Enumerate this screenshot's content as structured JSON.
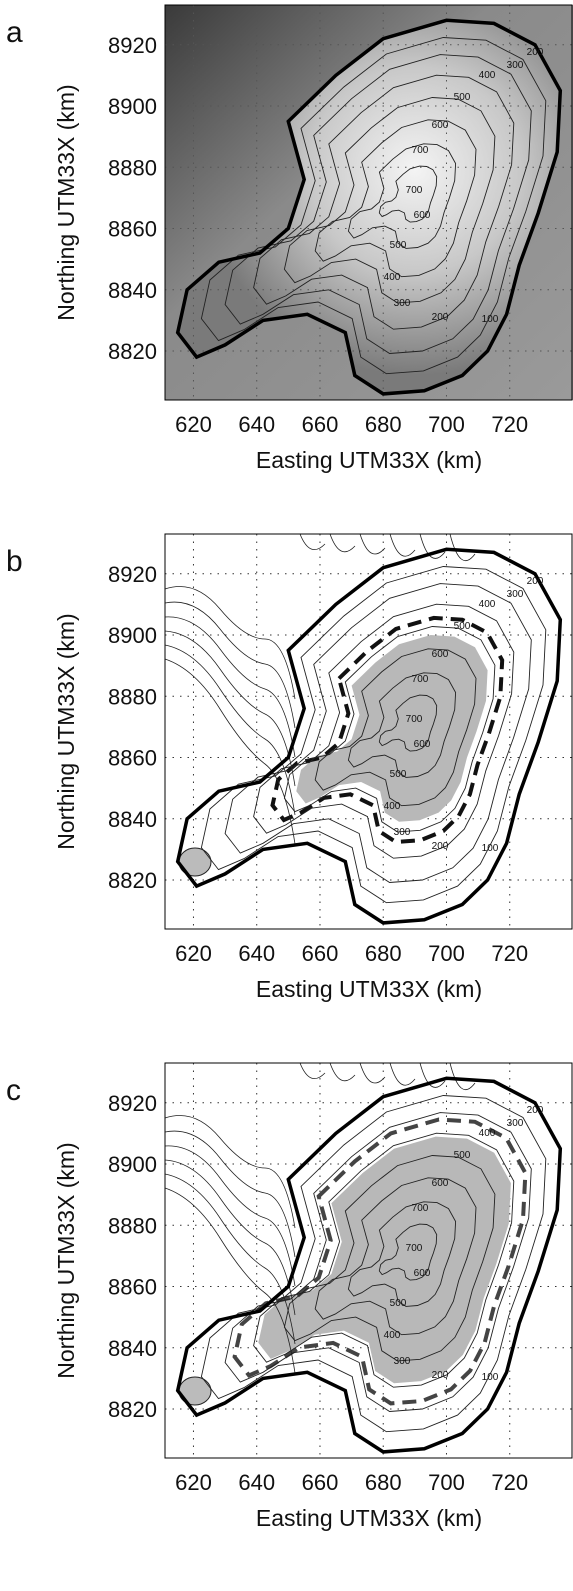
{
  "panels": [
    {
      "label": "a",
      "x_label": "Easting UTM33X (km)",
      "y_label": "Northing UTM33X (km)",
      "xlim": [
        611,
        740
      ],
      "ylim": [
        8804,
        8933
      ],
      "xticks": [
        620,
        640,
        660,
        680,
        700,
        720
      ],
      "yticks": [
        8820,
        8840,
        8860,
        8880,
        8900,
        8920
      ],
      "contour_labels": [
        "200",
        "300",
        "400",
        "500",
        "600",
        "700",
        "700",
        "600",
        "500",
        "400",
        "300",
        "200",
        "100"
      ]
    },
    {
      "label": "b",
      "x_label": "Easting UTM33X (km)",
      "y_label": "Northing UTM33X (km)",
      "xlim": [
        611,
        740
      ],
      "ylim": [
        8804,
        8933
      ],
      "xticks": [
        620,
        640,
        660,
        680,
        700,
        720
      ],
      "yticks": [
        8820,
        8840,
        8860,
        8880,
        8900,
        8920
      ],
      "contour_labels": [
        "200",
        "300",
        "400",
        "500",
        "600",
        "700",
        "700",
        "600",
        "500",
        "400",
        "300",
        "200",
        "100"
      ]
    },
    {
      "label": "c",
      "x_label": "Easting UTM33X (km)",
      "y_label": "Northing UTM33X (km)",
      "xlim": [
        611,
        740
      ],
      "ylim": [
        8804,
        8933
      ],
      "xticks": [
        620,
        640,
        660,
        680,
        700,
        720
      ],
      "yticks": [
        8820,
        8840,
        8860,
        8880,
        8900,
        8920
      ],
      "contour_labels": [
        "200",
        "300",
        "400",
        "500",
        "600",
        "700",
        "700",
        "600",
        "500",
        "400",
        "300",
        "200",
        "100"
      ]
    }
  ]
}
